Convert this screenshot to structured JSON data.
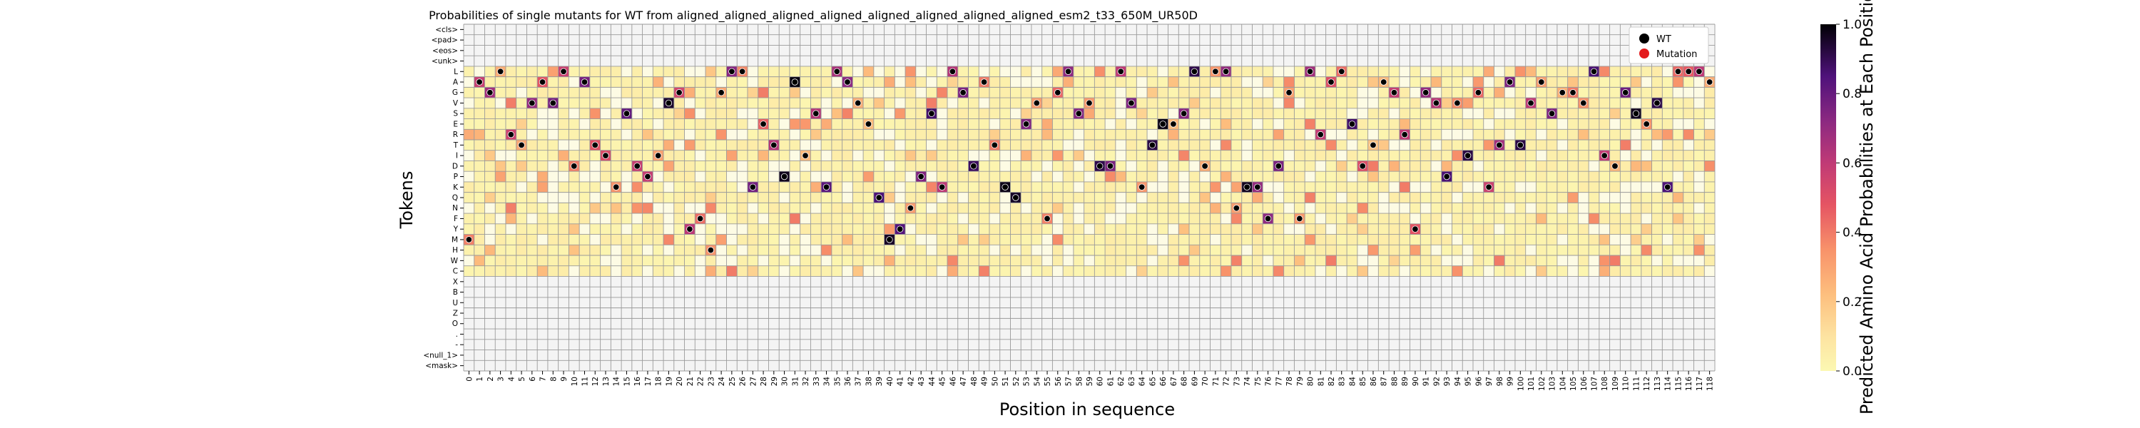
{
  "chart_data": {
    "type": "heatmap",
    "title": "Probabilities of single mutants for WT from aligned_aligned_aligned_aligned_aligned_aligned_aligned_aligned_esm2_t33_650M_UR50D",
    "xlabel": "Position in sequence",
    "ylabel": "Tokens",
    "tokens": [
      "<cls>",
      "<pad>",
      "<eos>",
      "<unk>",
      "L",
      "A",
      "G",
      "V",
      "S",
      "E",
      "R",
      "T",
      "I",
      "D",
      "P",
      "K",
      "Q",
      "N",
      "F",
      "Y",
      "M",
      "H",
      "W",
      "C",
      "X",
      "B",
      "U",
      "Z",
      "O",
      ".",
      "-",
      "<null_1>",
      "<mask>"
    ],
    "x_ticks": [
      "0",
      "1",
      "2",
      "3",
      "4",
      "5",
      "6",
      "7",
      "8",
      "9",
      "10",
      "11",
      "12",
      "13",
      "14",
      "15",
      "16",
      "17",
      "18",
      "19",
      "20",
      "21",
      "22",
      "23",
      "24",
      "25",
      "26",
      "27",
      "28",
      "29",
      "30",
      "31",
      "32",
      "33",
      "34",
      "35",
      "36",
      "37",
      "38",
      "39",
      "40",
      "41",
      "42",
      "43",
      "44",
      "45",
      "46",
      "47",
      "48",
      "49",
      "50",
      "51",
      "52",
      "53",
      "54",
      "55",
      "56",
      "57",
      "58",
      "59",
      "60",
      "61",
      "62",
      "63",
      "64",
      "65",
      "66",
      "67",
      "68",
      "69",
      "70",
      "71",
      "72",
      "73",
      "74",
      "75",
      "76",
      "77",
      "78",
      "79",
      "80",
      "81",
      "82",
      "83",
      "84",
      "85",
      "86",
      "87",
      "88",
      "89",
      "90",
      "91",
      "92",
      "93",
      "94",
      "95",
      "96",
      "97",
      "98",
      "99",
      "100",
      "101",
      "102",
      "103",
      "104",
      "105",
      "106",
      "107",
      "108",
      "109",
      "110",
      "111",
      "112",
      "113",
      "114",
      "115",
      "116",
      "117",
      "118"
    ],
    "wt_sequence": "MAGLRTVAVLDATIKSDPIVGYFHGLLKETPAISKLAVEQMYNPSKLGDATKQEVFGLSVDDLVKTEESLDLLNKKFDGFLRALEDTAGRYGVPVIGKTATVASGGVLIDGSEVKLLLA",
    "values_note": "grid of probabilities per token (rows) and position (columns); low-probability cells rendered near-white",
    "colorbar": {
      "label": "Predicted Amino Acid Probabilities at Each Position",
      "ticks": [
        "0.0",
        "0.2",
        "0.4",
        "0.6",
        "0.8",
        "1.0"
      ],
      "range": [
        0.0,
        1.0
      ],
      "colormap": "magma_r"
    },
    "legend": [
      {
        "label": "WT",
        "color": "#000000"
      },
      {
        "label": "Mutation",
        "color": "#e31a1c"
      }
    ],
    "legend_position": "top-right",
    "grid": true
  }
}
